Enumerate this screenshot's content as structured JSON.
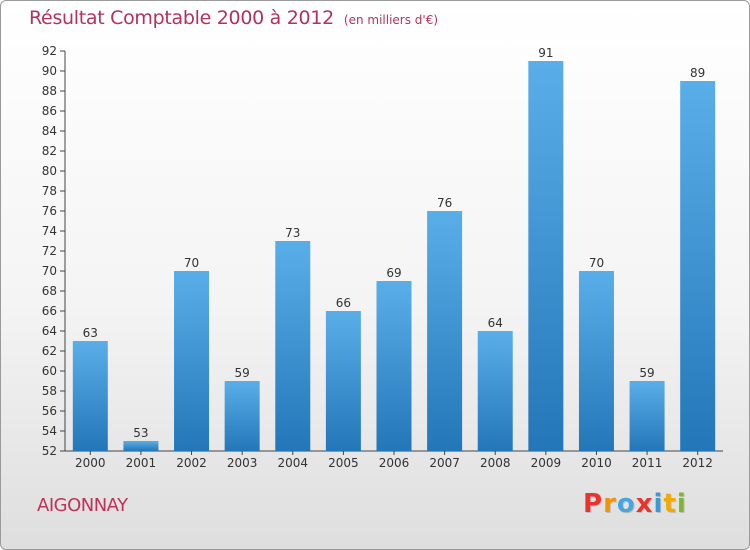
{
  "header": {
    "title": "Résultat Comptable 2000 à 2012",
    "subtitle": "(en milliers d'€)"
  },
  "footer": {
    "commune": "AIGONNAY",
    "logo_text": "Proxiti",
    "logo_colors": [
      "#e8342c",
      "#f29400",
      "#4aa5dc",
      "#e8342c",
      "#3a9ad9",
      "#f2a900",
      "#7cb82f"
    ]
  },
  "colors": {
    "bar_top": "#5aaee8",
    "bar_bottom": "#2377b8",
    "title": "#b3325a"
  },
  "chart_data": {
    "type": "bar",
    "title": "Résultat Comptable 2000 à 2012",
    "subtitle": "(en milliers d'€)",
    "xlabel": "",
    "ylabel": "",
    "categories": [
      "2000",
      "2001",
      "2002",
      "2003",
      "2004",
      "2005",
      "2006",
      "2007",
      "2008",
      "2009",
      "2010",
      "2011",
      "2012"
    ],
    "values": [
      63,
      53,
      70,
      59,
      73,
      66,
      69,
      76,
      64,
      91,
      70,
      59,
      89
    ],
    "ylim": [
      52,
      92
    ],
    "yticks": [
      52,
      54,
      56,
      58,
      60,
      62,
      64,
      66,
      68,
      70,
      72,
      74,
      76,
      78,
      80,
      82,
      84,
      86,
      88,
      90,
      92
    ],
    "grid": false,
    "legend": "none"
  }
}
